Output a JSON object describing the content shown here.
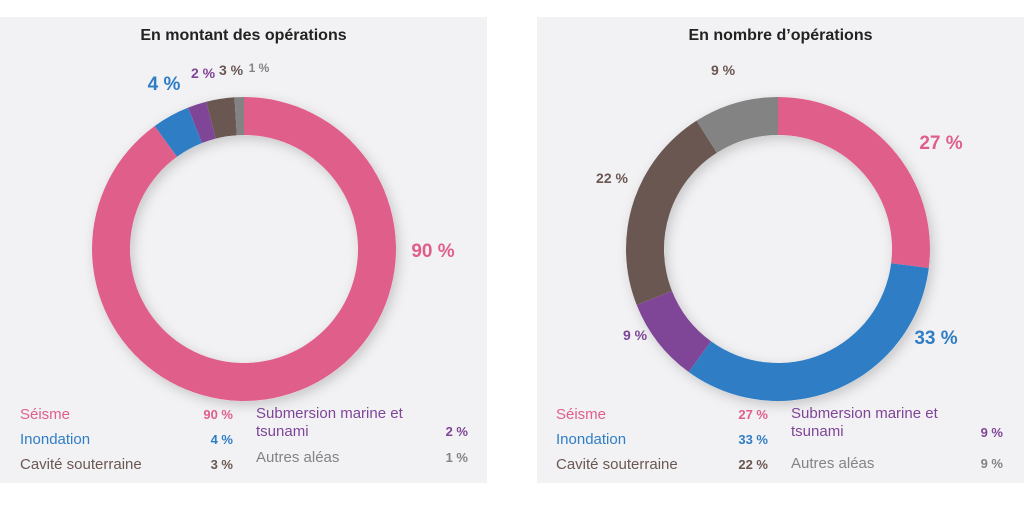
{
  "colors": {
    "seisme": "#df5f8a",
    "inondation": "#2f7ec5",
    "submersion": "#7f4597",
    "cavite": "#6a5752",
    "autres": "#838383"
  },
  "chart_data": [
    {
      "type": "pie",
      "title": "En montant des opérations",
      "categories": [
        "Séisme",
        "Inondation",
        "Submersion marine et tsunami",
        "Cavité souterraine",
        "Autres aléas"
      ],
      "values": [
        90,
        4,
        2,
        3,
        1
      ],
      "data_labels": [
        "90 %",
        "4 %",
        "2 %",
        "3 %",
        "1 %"
      ],
      "legend": [
        {
          "label": "Séisme",
          "value": "90 %"
        },
        {
          "label": "Inondation",
          "value": "4 %"
        },
        {
          "label": "Cavité souterraine",
          "value": "3 %"
        },
        {
          "label": "Submersion marine et tsunami",
          "value": "2 %"
        },
        {
          "label": "Autres aléas",
          "value": "1 %"
        }
      ],
      "legend_placement": "bottom"
    },
    {
      "type": "pie",
      "title": "En nombre d’opérations",
      "categories": [
        "Séisme",
        "Inondation",
        "Submersion marine et tsunami",
        "Cavité souterraine",
        "Autres aléas"
      ],
      "values": [
        27,
        33,
        9,
        22,
        9
      ],
      "data_labels": [
        "27 %",
        "33 %",
        "9 %",
        "22 %",
        "9 %"
      ],
      "legend": [
        {
          "label": "Séisme",
          "value": "27 %"
        },
        {
          "label": "Inondation",
          "value": "33 %"
        },
        {
          "label": "Cavité souterraine",
          "value": "22 %"
        },
        {
          "label": "Submersion marine et tsunami",
          "value": "9 %"
        },
        {
          "label": "Autres aléas",
          "value": "9 %"
        }
      ],
      "legend_placement": "bottom"
    }
  ]
}
